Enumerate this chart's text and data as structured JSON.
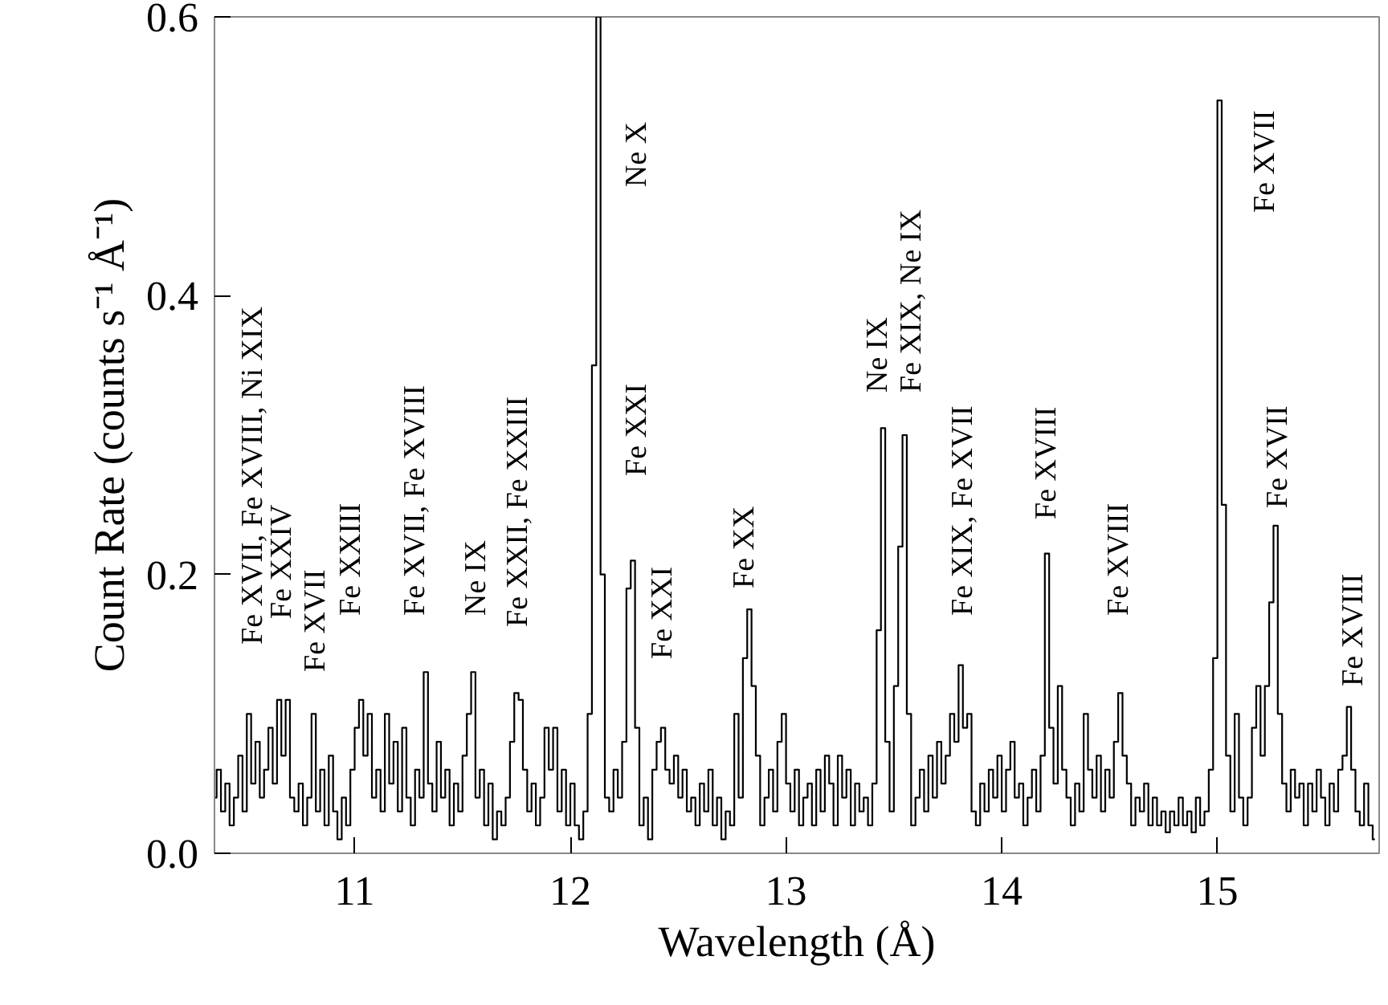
{
  "chart_data": {
    "type": "step",
    "xlabel": "Wavelength (Å)",
    "ylabel": "Count Rate (counts s⁻¹ Å⁻¹)",
    "xlim": [
      10.35,
      15.75
    ],
    "ylim": [
      0,
      0.6
    ],
    "xticks": [
      11,
      12,
      13,
      14,
      15
    ],
    "yticks": [
      {
        "value": 0,
        "label": "0.0"
      },
      0.2,
      0.4,
      0.6
    ],
    "grid": false,
    "series": [
      {
        "color": "#000000",
        "x": [
          10.35,
          10.37,
          10.39,
          10.41,
          10.43,
          10.45,
          10.47,
          10.49,
          10.51,
          10.53,
          10.55,
          10.57,
          10.59,
          10.61,
          10.63,
          10.65,
          10.67,
          10.69,
          10.71,
          10.73,
          10.75,
          10.77,
          10.79,
          10.81,
          10.83,
          10.85,
          10.87,
          10.89,
          10.91,
          10.93,
          10.95,
          10.97,
          10.99,
          11.01,
          11.03,
          11.05,
          11.07,
          11.09,
          11.11,
          11.13,
          11.15,
          11.17,
          11.19,
          11.21,
          11.23,
          11.25,
          11.27,
          11.29,
          11.31,
          11.33,
          11.35,
          11.37,
          11.39,
          11.41,
          11.43,
          11.45,
          11.47,
          11.49,
          11.51,
          11.53,
          11.55,
          11.57,
          11.59,
          11.61,
          11.63,
          11.65,
          11.67,
          11.69,
          11.71,
          11.73,
          11.75,
          11.77,
          11.79,
          11.81,
          11.83,
          11.85,
          11.87,
          11.89,
          11.91,
          11.93,
          11.95,
          11.97,
          11.99,
          12.01,
          12.03,
          12.05,
          12.07,
          12.09,
          12.11,
          12.13,
          12.15,
          12.17,
          12.19,
          12.21,
          12.23,
          12.25,
          12.27,
          12.29,
          12.31,
          12.33,
          12.35,
          12.37,
          12.39,
          12.41,
          12.43,
          12.45,
          12.47,
          12.49,
          12.51,
          12.53,
          12.55,
          12.57,
          12.59,
          12.61,
          12.63,
          12.65,
          12.67,
          12.69,
          12.71,
          12.73,
          12.75,
          12.77,
          12.79,
          12.81,
          12.83,
          12.85,
          12.87,
          12.89,
          12.91,
          12.93,
          12.95,
          12.97,
          12.99,
          13.01,
          13.03,
          13.05,
          13.07,
          13.09,
          13.11,
          13.13,
          13.15,
          13.17,
          13.19,
          13.21,
          13.23,
          13.25,
          13.27,
          13.29,
          13.31,
          13.33,
          13.35,
          13.37,
          13.39,
          13.41,
          13.43,
          13.45,
          13.47,
          13.49,
          13.51,
          13.53,
          13.55,
          13.57,
          13.59,
          13.61,
          13.63,
          13.65,
          13.67,
          13.69,
          13.71,
          13.73,
          13.75,
          13.77,
          13.79,
          13.81,
          13.83,
          13.85,
          13.87,
          13.89,
          13.91,
          13.93,
          13.95,
          13.97,
          13.99,
          14.01,
          14.03,
          14.05,
          14.07,
          14.09,
          14.11,
          14.13,
          14.15,
          14.17,
          14.19,
          14.21,
          14.23,
          14.25,
          14.27,
          14.29,
          14.31,
          14.33,
          14.35,
          14.37,
          14.39,
          14.41,
          14.43,
          14.45,
          14.47,
          14.49,
          14.51,
          14.53,
          14.55,
          14.57,
          14.59,
          14.61,
          14.63,
          14.65,
          14.67,
          14.69,
          14.71,
          14.73,
          14.75,
          14.77,
          14.79,
          14.81,
          14.83,
          14.85,
          14.87,
          14.89,
          14.91,
          14.93,
          14.95,
          14.97,
          14.99,
          15.01,
          15.03,
          15.05,
          15.07,
          15.09,
          15.11,
          15.13,
          15.15,
          15.17,
          15.19,
          15.21,
          15.23,
          15.25,
          15.27,
          15.29,
          15.31,
          15.33,
          15.35,
          15.37,
          15.39,
          15.41,
          15.43,
          15.45,
          15.47,
          15.49,
          15.51,
          15.53,
          15.55,
          15.57,
          15.59,
          15.61,
          15.63,
          15.65,
          15.67,
          15.69,
          15.71,
          15.73
        ],
        "values": [
          0.04,
          0.06,
          0.03,
          0.05,
          0.02,
          0.04,
          0.07,
          0.03,
          0.1,
          0.05,
          0.08,
          0.04,
          0.06,
          0.09,
          0.05,
          0.11,
          0.07,
          0.11,
          0.04,
          0.03,
          0.05,
          0.02,
          0.04,
          0.1,
          0.03,
          0.06,
          0.02,
          0.07,
          0.03,
          0.01,
          0.04,
          0.02,
          0.06,
          0.09,
          0.11,
          0.07,
          0.1,
          0.04,
          0.06,
          0.03,
          0.1,
          0.05,
          0.08,
          0.03,
          0.09,
          0.04,
          0.02,
          0.06,
          0.04,
          0.13,
          0.05,
          0.03,
          0.08,
          0.04,
          0.06,
          0.02,
          0.05,
          0.03,
          0.07,
          0.1,
          0.13,
          0.04,
          0.06,
          0.02,
          0.05,
          0.01,
          0.03,
          0.02,
          0.04,
          0.08,
          0.115,
          0.11,
          0.06,
          0.03,
          0.05,
          0.02,
          0.04,
          0.09,
          0.06,
          0.09,
          0.03,
          0.06,
          0.02,
          0.05,
          0.02,
          0.01,
          0.03,
          0.1,
          0.35,
          0.6,
          0.2,
          0.04,
          0.03,
          0.06,
          0.04,
          0.08,
          0.19,
          0.21,
          0.09,
          0.02,
          0.04,
          0.01,
          0.06,
          0.08,
          0.09,
          0.06,
          0.05,
          0.07,
          0.04,
          0.06,
          0.03,
          0.04,
          0.02,
          0.05,
          0.03,
          0.06,
          0.02,
          0.04,
          0.01,
          0.03,
          0.02,
          0.1,
          0.04,
          0.14,
          0.175,
          0.12,
          0.07,
          0.02,
          0.04,
          0.06,
          0.03,
          0.08,
          0.1,
          0.05,
          0.03,
          0.06,
          0.02,
          0.04,
          0.05,
          0.02,
          0.06,
          0.03,
          0.07,
          0.05,
          0.02,
          0.07,
          0.04,
          0.06,
          0.02,
          0.05,
          0.03,
          0.04,
          0.02,
          0.05,
          0.16,
          0.305,
          0.08,
          0.03,
          0.12,
          0.22,
          0.3,
          0.1,
          0.02,
          0.04,
          0.06,
          0.03,
          0.07,
          0.04,
          0.08,
          0.05,
          0.07,
          0.1,
          0.08,
          0.135,
          0.09,
          0.1,
          0.03,
          0.02,
          0.05,
          0.03,
          0.06,
          0.04,
          0.07,
          0.03,
          0.06,
          0.08,
          0.04,
          0.05,
          0.02,
          0.04,
          0.06,
          0.03,
          0.07,
          0.215,
          0.09,
          0.05,
          0.12,
          0.06,
          0.04,
          0.02,
          0.05,
          0.03,
          0.1,
          0.06,
          0.04,
          0.07,
          0.03,
          0.06,
          0.04,
          0.08,
          0.115,
          0.07,
          0.05,
          0.02,
          0.04,
          0.03,
          0.05,
          0.02,
          0.04,
          0.02,
          0.03,
          0.015,
          0.03,
          0.02,
          0.04,
          0.02,
          0.03,
          0.015,
          0.04,
          0.02,
          0.03,
          0.06,
          0.14,
          0.54,
          0.25,
          0.07,
          0.03,
          0.1,
          0.04,
          0.02,
          0.04,
          0.09,
          0.12,
          0.07,
          0.12,
          0.18,
          0.235,
          0.1,
          0.05,
          0.03,
          0.06,
          0.04,
          0.05,
          0.02,
          0.05,
          0.03,
          0.06,
          0.04,
          0.02,
          0.05,
          0.03,
          0.06,
          0.07,
          0.105,
          0.06,
          0.03,
          0.02,
          0.05,
          0.02,
          0.01
        ]
      }
    ],
    "annotations": [
      "Fe XVII, Fe XVIII, Ni XIX",
      "Fe XXIV",
      "Fe XVII",
      "Fe XXIII",
      "Fe XVII, Fe XVIII",
      "Ne IX",
      "Fe XXII, Fe XXIII",
      "Ne X",
      "Fe XXI",
      "Fe XXI",
      "Fe XX",
      "Ne IX",
      "Fe XIX, Ne IX",
      "Fe XIX, Fe XVII",
      "Fe XVIII",
      "Fe XVIII",
      "Fe XVII",
      "Fe XVII",
      "Fe XVIII"
    ]
  }
}
